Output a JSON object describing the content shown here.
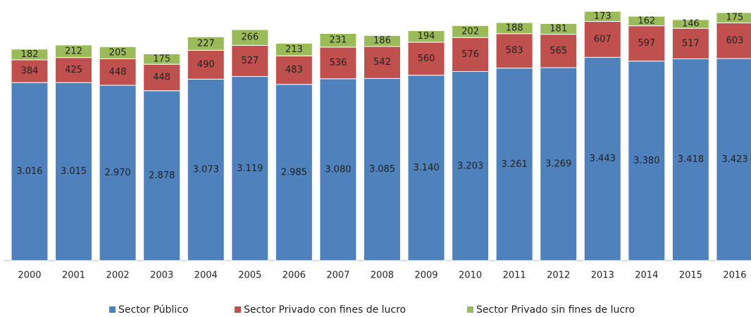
{
  "chart_data": {
    "type": "stacked_bar",
    "categories": [
      "2000",
      "2001",
      "2002",
      "2003",
      "2004",
      "2005",
      "2006",
      "2007",
      "2008",
      "2009",
      "2010",
      "2011",
      "2012",
      "2013",
      "2014",
      "2015",
      "2016"
    ],
    "series": [
      {
        "name": "Sector Público",
        "color": "#4f81bd",
        "values": [
          3016,
          3015,
          2970,
          2878,
          3073,
          3119,
          2985,
          3080,
          3085,
          3140,
          3203,
          3261,
          3269,
          3443,
          3380,
          3418,
          3423
        ],
        "value_labels": [
          "3.016",
          "3.015",
          "2.970",
          "2.878",
          "3.073",
          "3.119",
          "2.985",
          "3.080",
          "3.085",
          "3.140",
          "3.203",
          "3.261",
          "3.269",
          "3.443",
          "3.380",
          "3.418",
          "3.423"
        ]
      },
      {
        "name": "Sector Privado con fines de lucro",
        "color": "#c0504d",
        "values": [
          384,
          425,
          448,
          448,
          490,
          527,
          483,
          536,
          542,
          560,
          576,
          583,
          565,
          607,
          597,
          517,
          603
        ]
      },
      {
        "name": "Sector Privado sin fines de lucro",
        "color": "#9bbb59",
        "values": [
          182,
          212,
          205,
          175,
          227,
          266,
          213,
          231,
          186,
          194,
          202,
          188,
          181,
          173,
          162,
          146,
          175
        ]
      }
    ]
  }
}
